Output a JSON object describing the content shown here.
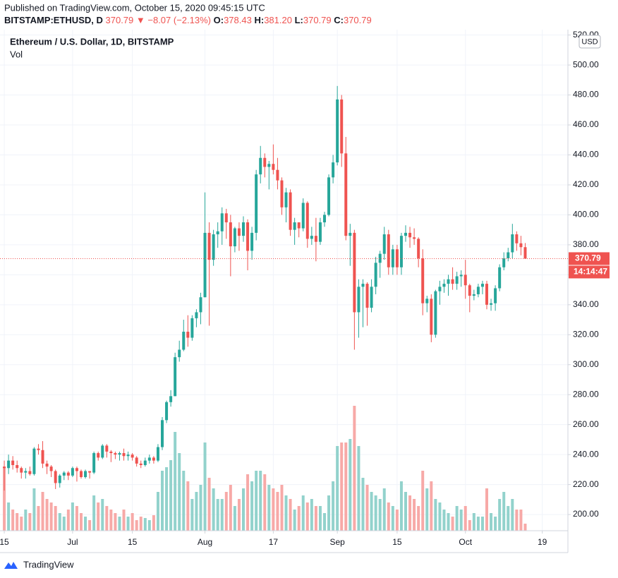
{
  "header": {
    "published": "Published on TradingView.com, October 15, 2020 09:45:15 UTC",
    "symbol": "BITSTAMP:ETHUSD, D",
    "last": "370.79",
    "change": "▼ −8.07 (−2.13%)",
    "ohlc": [
      {
        "key": "O:",
        "value": "378.43"
      },
      {
        "key": "H:",
        "value": "381.20"
      },
      {
        "key": "L:",
        "value": "370.79"
      },
      {
        "key": "C:",
        "value": "370.79"
      }
    ]
  },
  "chart_data": {
    "type": "candlestick",
    "title": "Ethereum / U.S. Dollar, 1D, BITSTAMP",
    "volume_label": "Vol",
    "currency": "USD",
    "countdown": "14:14:47",
    "last_price": {
      "value": 370.79,
      "label": "370.79"
    },
    "up_color": "#26a69a",
    "down_color": "#ef5350",
    "volume_up_color": "#92d2cc",
    "volume_down_color": "#f7a9a7",
    "grid": true,
    "xlim": [
      "2020-06-14",
      "2020-10-25"
    ],
    "xticks": [
      {
        "value": "2020-06-15",
        "label": "15"
      },
      {
        "value": "2020-07-01",
        "label": "Jul"
      },
      {
        "value": "2020-07-15",
        "label": "15"
      },
      {
        "value": "2020-08-01",
        "label": "Aug"
      },
      {
        "value": "2020-08-17",
        "label": "17"
      },
      {
        "value": "2020-09-01",
        "label": "Sep"
      },
      {
        "value": "2020-09-15",
        "label": "15"
      },
      {
        "value": "2020-10-01",
        "label": "Oct"
      },
      {
        "value": "2020-10-19",
        "label": "19"
      }
    ],
    "ylim": [
      189.2,
      523.6
    ],
    "yticks": [
      {
        "value": 200,
        "label": "200.00"
      },
      {
        "value": 220,
        "label": "220.00"
      },
      {
        "value": 240,
        "label": "240.00"
      },
      {
        "value": 260,
        "label": "260.00"
      },
      {
        "value": 280,
        "label": "280.00"
      },
      {
        "value": 300,
        "label": "300.00"
      },
      {
        "value": 320,
        "label": "320.00"
      },
      {
        "value": 340,
        "label": "340.00"
      },
      {
        "value": 360,
        "label": "360.00"
      },
      {
        "value": 380,
        "label": "380.00"
      },
      {
        "value": 400,
        "label": "400.00"
      },
      {
        "value": 420,
        "label": "420.00"
      },
      {
        "value": 440,
        "label": "440.00"
      },
      {
        "value": 460,
        "label": "460.00"
      },
      {
        "value": 480,
        "label": "480.00"
      },
      {
        "value": 500,
        "label": "500.00"
      },
      {
        "value": 520,
        "label": "520.00"
      }
    ],
    "start": "2020-06-15",
    "open": [
      232,
      231,
      236,
      233,
      231,
      228,
      229,
      227,
      244,
      243,
      234,
      232,
      229,
      221,
      226,
      228,
      226,
      231,
      229,
      225,
      229,
      228,
      241,
      238,
      246,
      242,
      241,
      240,
      241,
      239,
      240,
      238,
      234,
      233,
      236,
      238,
      236,
      245,
      263,
      275,
      279,
      305,
      310,
      322,
      318,
      331,
      335,
      345,
      388,
      370,
      387,
      389,
      401,
      395,
      379,
      391,
      386,
      395,
      376,
      388,
      427,
      438,
      432,
      434,
      430,
      423,
      405,
      415,
      390,
      395,
      391,
      408,
      384,
      386,
      382,
      395,
      400,
      425,
      435,
      477,
      441,
      386,
      388,
      335,
      352,
      354,
      338,
      352,
      368,
      374,
      387,
      365,
      377,
      365,
      386,
      388,
      385,
      384,
      371,
      341,
      344,
      320,
      349,
      352,
      354,
      357,
      354,
      359,
      360,
      353,
      346,
      347,
      352,
      354,
      340,
      341,
      351,
      365,
      371,
      375,
      387,
      381,
      378.43
    ],
    "high": [
      236,
      240,
      239,
      236,
      232,
      231,
      232,
      245,
      247,
      249,
      236,
      233,
      230,
      227,
      229,
      229,
      232,
      232,
      230,
      230,
      229,
      242,
      242,
      247,
      247,
      243,
      242,
      242,
      244,
      242,
      241,
      239,
      236,
      238,
      240,
      239,
      247,
      265,
      276,
      283,
      308,
      316,
      330,
      333,
      333,
      337,
      348,
      415,
      395,
      390,
      395,
      405,
      404,
      400,
      392,
      395,
      399,
      397,
      392,
      430,
      446,
      441,
      436,
      447,
      438,
      425,
      418,
      417,
      398,
      395,
      411,
      409,
      392,
      398,
      398,
      402,
      427,
      440,
      486,
      480,
      452,
      394,
      390,
      357,
      357,
      355,
      357,
      372,
      376,
      392,
      390,
      380,
      380,
      388,
      393,
      392,
      391,
      385,
      377,
      346,
      347,
      350,
      356,
      357,
      360,
      365,
      362,
      363,
      370,
      354,
      350,
      354,
      356,
      356,
      344,
      353,
      367,
      375,
      378,
      394,
      389,
      386,
      381.2
    ],
    "low": [
      216,
      227,
      230,
      228,
      224,
      224,
      226,
      226,
      240,
      231,
      227,
      225,
      217,
      218,
      223,
      223,
      225,
      222,
      224,
      224,
      224,
      227,
      236,
      237,
      238,
      235,
      237,
      236,
      236,
      236,
      236,
      232,
      231,
      232,
      234,
      234,
      235,
      243,
      261,
      272,
      279,
      302,
      309,
      312,
      316,
      325,
      327,
      345,
      326,
      366,
      378,
      380,
      384,
      359,
      375,
      376,
      382,
      363,
      370,
      383,
      421,
      425,
      417,
      427,
      417,
      400,
      395,
      386,
      380,
      385,
      389,
      378,
      380,
      369,
      380,
      392,
      399,
      421,
      433,
      432,
      383,
      366,
      310,
      318,
      325,
      326,
      335,
      347,
      358,
      370,
      360,
      360,
      360,
      360,
      382,
      378,
      380,
      365,
      333,
      335,
      315,
      318,
      340,
      348,
      346,
      350,
      350,
      352,
      344,
      335,
      343,
      345,
      347,
      337,
      336,
      336,
      349,
      363,
      369,
      371,
      376,
      373,
      370.79
    ],
    "close": [
      231,
      236,
      233,
      231,
      228,
      229,
      227,
      244,
      243,
      234,
      232,
      229,
      221,
      226,
      228,
      226,
      231,
      229,
      225,
      229,
      228,
      241,
      238,
      246,
      242,
      241,
      240,
      241,
      239,
      240,
      238,
      234,
      233,
      236,
      238,
      236,
      245,
      263,
      275,
      279,
      305,
      310,
      322,
      318,
      331,
      335,
      345,
      388,
      370,
      387,
      389,
      401,
      395,
      379,
      391,
      386,
      395,
      376,
      388,
      427,
      438,
      432,
      434,
      430,
      423,
      405,
      415,
      390,
      395,
      391,
      408,
      384,
      386,
      382,
      395,
      400,
      425,
      435,
      477,
      441,
      386,
      388,
      335,
      352,
      354,
      338,
      352,
      368,
      374,
      387,
      365,
      377,
      365,
      386,
      388,
      385,
      384,
      371,
      341,
      344,
      320,
      349,
      352,
      354,
      357,
      354,
      359,
      360,
      353,
      346,
      347,
      352,
      354,
      340,
      341,
      351,
      365,
      371,
      375,
      387,
      381,
      378.43,
      370.79
    ],
    "volume": [
      90,
      40,
      30,
      25,
      20,
      30,
      25,
      60,
      35,
      55,
      45,
      40,
      35,
      25,
      20,
      30,
      40,
      35,
      25,
      20,
      15,
      50,
      40,
      45,
      35,
      30,
      25,
      20,
      30,
      20,
      25,
      15,
      20,
      18,
      15,
      22,
      55,
      85,
      90,
      100,
      140,
      110,
      85,
      70,
      45,
      55,
      65,
      125,
      75,
      60,
      45,
      45,
      55,
      65,
      35,
      45,
      60,
      80,
      70,
      85,
      85,
      80,
      65,
      60,
      55,
      65,
      50,
      45,
      30,
      35,
      50,
      40,
      45,
      35,
      35,
      25,
      50,
      70,
      120,
      125,
      125,
      130,
      177,
      120,
      75,
      65,
      55,
      50,
      45,
      60,
      40,
      35,
      30,
      70,
      55,
      50,
      45,
      35,
      85,
      60,
      70,
      45,
      40,
      30,
      25,
      20,
      35,
      30,
      35,
      15,
      25,
      20,
      20,
      60,
      25,
      20,
      45,
      55,
      35,
      45,
      30,
      30,
      10
    ]
  },
  "footer": {
    "brand": "TradingView"
  }
}
